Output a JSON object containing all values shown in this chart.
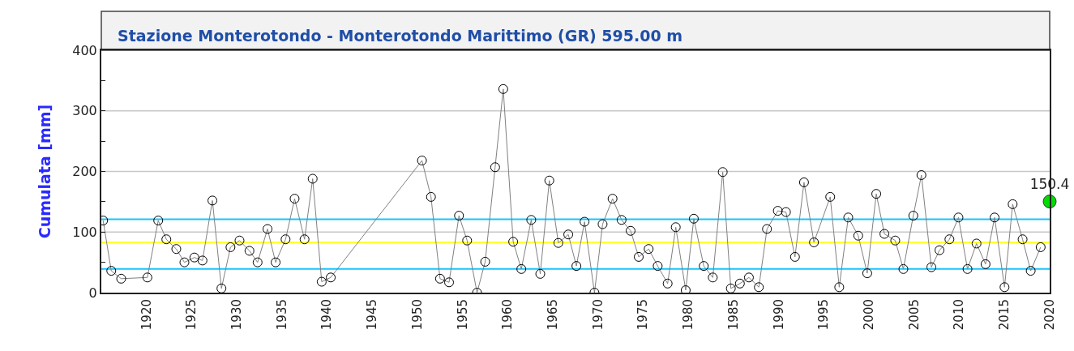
{
  "chart_data": {
    "type": "line",
    "title": "Stazione Monterotondo - Monterotondo Marittimo (GR) 595.00 m",
    "ylabel": "Cumulata [mm]",
    "xlim": [
      1915,
      2020
    ],
    "xticks": [
      1920,
      1925,
      1930,
      1935,
      1940,
      1945,
      1950,
      1955,
      1960,
      1965,
      1970,
      1975,
      1980,
      1985,
      1990,
      1995,
      2000,
      2005,
      2010,
      2015,
      2020
    ],
    "ylim": [
      0,
      400
    ],
    "yticks": [
      0,
      {
        "value": 50,
        "label": null
      },
      100,
      {
        "value": 150,
        "label": null
      },
      200,
      {
        "value": 250,
        "label": null
      },
      300,
      {
        "value": 350,
        "label": null
      },
      400
    ],
    "grid": "y",
    "marker": "circle",
    "line_style": "solid",
    "series": [
      {
        "color": "#808080",
        "x": [
          1915.2,
          1916.1,
          1917.2,
          1920.1,
          1921.3,
          1922.2,
          1923.3,
          1924.2,
          1925.3,
          1926.2,
          1927.3,
          1928.3,
          1929.3,
          1930.3,
          1931.4,
          1932.3,
          1933.4,
          1934.3,
          1935.4,
          1936.4,
          1937.5,
          1938.4,
          1939.4,
          1940.4,
          1950.5,
          1951.5,
          1952.5,
          1953.5,
          1954.6,
          1955.5,
          1956.6,
          1957.5,
          1958.6,
          1959.5,
          1960.6,
          1961.5,
          1962.6,
          1963.6,
          1964.6,
          1965.6,
          1966.7,
          1967.6,
          1968.5,
          1969.6,
          1970.5,
          1971.6,
          1972.6,
          1973.6,
          1974.5,
          1975.6,
          1976.6,
          1977.7,
          1978.6,
          1979.7,
          1980.6,
          1981.7,
          1982.7,
          1983.8,
          1984.7,
          1985.7,
          1986.7,
          1987.8,
          1988.7,
          1989.9,
          1990.8,
          1991.8,
          1992.8,
          1993.9,
          1995.7,
          1996.7,
          1997.7,
          1998.8,
          1999.8,
          2000.8,
          2001.7,
          2002.9,
          2003.8,
          2004.9,
          2005.8,
          2006.9,
          2007.8,
          2008.9,
          2009.9,
          2010.9,
          2011.9,
          2012.9,
          2013.9,
          2015.0,
          2015.9,
          2017.0,
          2017.9,
          2019.0
        ],
        "values": [
          119,
          36,
          23,
          25,
          119,
          88,
          72,
          50,
          58,
          53,
          152,
          7,
          75,
          86,
          69,
          50,
          105,
          50,
          88,
          155,
          88,
          188,
          18,
          25,
          218,
          158,
          23,
          17,
          127,
          86,
          0,
          51,
          207,
          336,
          84,
          39,
          120,
          31,
          185,
          82,
          96,
          44,
          117,
          0,
          113,
          155,
          120,
          102,
          59,
          72,
          44,
          15,
          108,
          4,
          122,
          44,
          25,
          199,
          7,
          15,
          25,
          9,
          105,
          135,
          133,
          59,
          182,
          83,
          158,
          9,
          124,
          94,
          32,
          163,
          97,
          86,
          39,
          127,
          194,
          42,
          70,
          88,
          124,
          39,
          81,
          47,
          124,
          9,
          146,
          88,
          36,
          75
        ]
      },
      {
        "type": "scatter",
        "color": "#00dd00",
        "x": [
          2020
        ],
        "values": [
          150.4
        ],
        "value_labels": [
          "150.4"
        ]
      }
    ],
    "ref_lines": [
      {
        "axis": "y",
        "value": 121,
        "color": "#19c3ff"
      },
      {
        "axis": "y",
        "value": 39,
        "color": "#19c3ff"
      },
      {
        "axis": "y",
        "value": 83,
        "color": "#ffff33"
      }
    ]
  }
}
